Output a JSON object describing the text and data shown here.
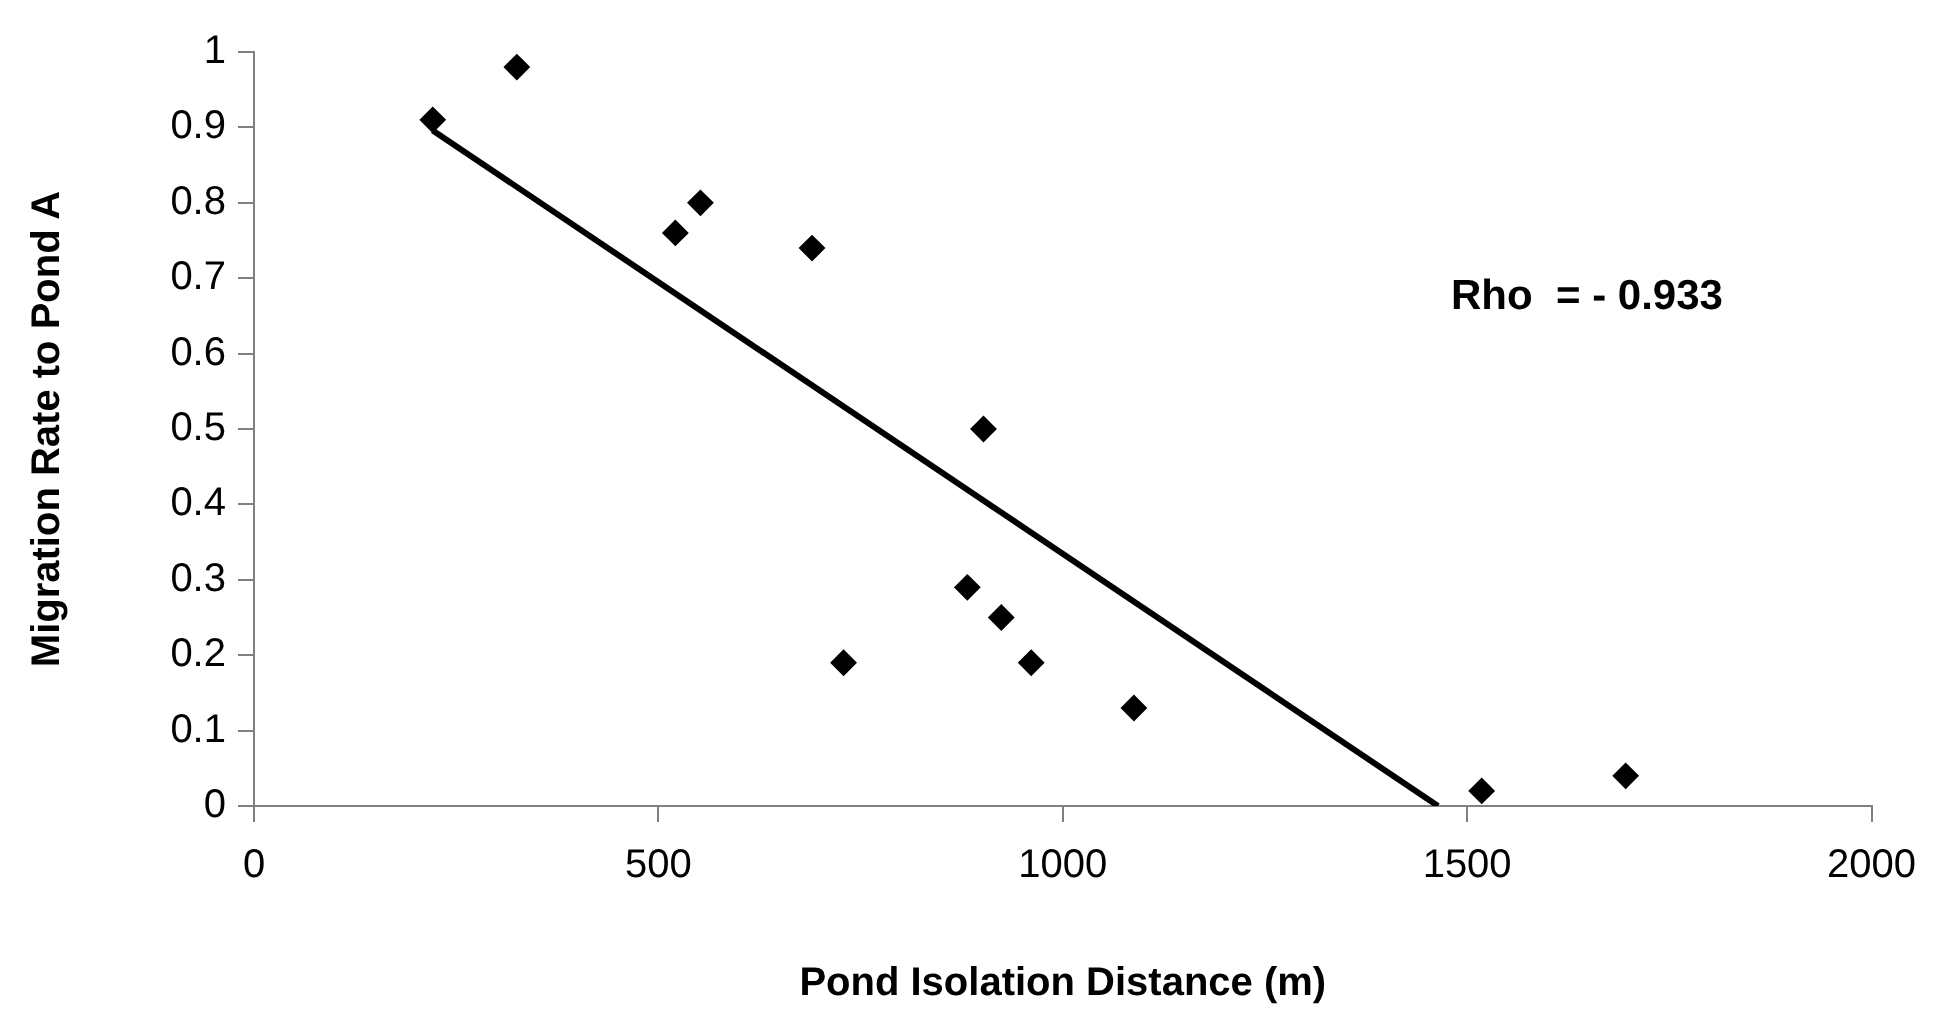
{
  "chart_data": {
    "type": "scatter",
    "xlabel": "Pond Isolation Distance (m)",
    "ylabel": "Migration Rate to Pond A",
    "xlim": [
      0,
      2000
    ],
    "xticks": [
      0,
      500,
      1000,
      1500,
      2000
    ],
    "ylim": [
      0,
      1
    ],
    "yticks": [
      0,
      0.1,
      0.2,
      0.3,
      0.4,
      0.5,
      0.6,
      0.7,
      0.8,
      0.9,
      1
    ],
    "grid": false,
    "legend": false,
    "marker": "diamond",
    "annotations": [
      "Rho  = - 0.933"
    ],
    "series": [
      {
        "color": "#000000",
        "x": [
          221,
          325,
          521,
          552,
          690,
          902,
          729,
          882,
          924,
          961,
          1088,
          1518,
          1696
        ],
        "values": [
          0.91,
          0.98,
          0.76,
          0.8,
          0.74,
          0.5,
          0.19,
          0.29,
          0.25,
          0.19,
          0.13,
          0.02,
          0.04
        ]
      },
      {
        "type": "line",
        "marker": "none",
        "line_style": "solid",
        "color": "#000000",
        "x": [
          221,
          1464
        ],
        "values": [
          0.896,
          0
        ]
      }
    ]
  }
}
